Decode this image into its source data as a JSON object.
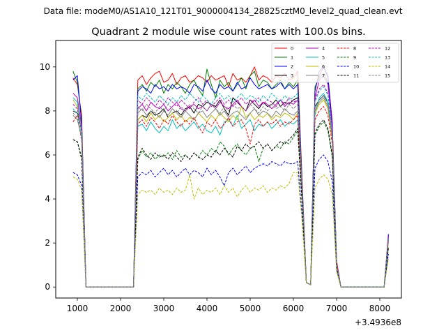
{
  "figure": {
    "suptitle": "Data file: modeM0/AS1A10_121T01_9000004134_28825cztM0_level2_quad_clean.evt"
  },
  "chart_data": {
    "type": "line",
    "title": "Quadrant 2 module wise count rates with 100.0s bins.",
    "xlabel": "",
    "ylabel": "",
    "xlim": [
      500,
      8500
    ],
    "ylim": [
      -0.5,
      11.2
    ],
    "x_ticks": [
      1000,
      2000,
      3000,
      4000,
      5000,
      6000,
      7000,
      8000
    ],
    "x_tick_labels": [
      "1000",
      "2000",
      "3000",
      "4000",
      "5000",
      "6000",
      "7000",
      "8000"
    ],
    "y_ticks": [
      0,
      2,
      4,
      6,
      8,
      10
    ],
    "y_tick_labels": [
      "0",
      "2",
      "4",
      "6",
      "8",
      "10"
    ],
    "x_offset_label": "+3.4936e8",
    "grid": false,
    "legend": {
      "placement": "top-right",
      "columns": 4
    },
    "x": [
      900,
      1000,
      1100,
      1200,
      2300,
      2400,
      2500,
      2600,
      2700,
      2800,
      2900,
      3000,
      3100,
      3200,
      3300,
      3400,
      3500,
      3600,
      3700,
      3800,
      3900,
      4000,
      4100,
      4200,
      4300,
      4400,
      4500,
      4600,
      4700,
      4800,
      4900,
      5000,
      5100,
      5200,
      5300,
      5400,
      5500,
      5600,
      5700,
      5800,
      5900,
      6000,
      6100,
      6200,
      6300,
      6400,
      6500,
      6600,
      6700,
      6800,
      6900,
      7000,
      7100,
      8100,
      8200
    ],
    "series": [
      {
        "name": "0",
        "color": "#ff0000",
        "dash": false,
        "values": [
          9.5,
          9.2,
          7.8,
          0,
          0,
          9.4,
          9.6,
          9.2,
          9.5,
          9.7,
          9.8,
          9.3,
          9.4,
          9.7,
          9.2,
          9.5,
          9.6,
          9.3,
          9.4,
          9.6,
          9.5,
          9.3,
          9.6,
          9.4,
          9.5,
          9.6,
          9.1,
          9.7,
          9.4,
          9.5,
          9.3,
          9.6,
          10.0,
          9.4,
          9.6,
          9.5,
          9.3,
          9.6,
          9.5,
          9.7,
          9.4,
          9.5,
          9.8,
          5.0,
          0.2,
          0.1,
          9.0,
          9.6,
          10.0,
          9.5,
          7.5,
          1.2,
          0,
          0,
          2.4
        ]
      },
      {
        "name": "1",
        "color": "#008000",
        "dash": false,
        "values": [
          9.8,
          9.3,
          7.6,
          0,
          0,
          9.0,
          9.2,
          8.9,
          9.3,
          9.1,
          9.4,
          8.8,
          9.2,
          9.0,
          9.3,
          9.1,
          8.8,
          9.2,
          9.4,
          9.0,
          8.7,
          9.9,
          9.2,
          8.6,
          9.4,
          9.1,
          9.3,
          8.9,
          9.2,
          9.5,
          9.0,
          9.6,
          9.8,
          9.1,
          9.4,
          9.3,
          9.0,
          9.2,
          9.4,
          9.0,
          9.3,
          9.1,
          9.4,
          4.8,
          0.2,
          0.1,
          9.1,
          9.5,
          9.7,
          9.3,
          7.3,
          1.1,
          0,
          0,
          2.3
        ]
      },
      {
        "name": "2",
        "color": "#0000ff",
        "dash": false,
        "values": [
          9.4,
          9.6,
          7.4,
          0,
          0,
          8.9,
          9.1,
          9.0,
          8.8,
          9.2,
          9.0,
          9.1,
          8.9,
          9.2,
          9.0,
          9.1,
          9.0,
          8.8,
          9.2,
          9.1,
          8.9,
          9.4,
          9.0,
          8.8,
          9.2,
          9.0,
          9.1,
          8.9,
          9.3,
          9.0,
          9.1,
          9.5,
          9.2,
          9.0,
          9.1,
          9.2,
          9.0,
          9.1,
          9.3,
          9.0,
          9.2,
          9.0,
          9.2,
          4.7,
          0.2,
          0.1,
          8.9,
          9.8,
          10.0,
          9.6,
          7.4,
          1.1,
          0,
          0,
          2.4
        ]
      },
      {
        "name": "3",
        "color": "#000000",
        "dash": false,
        "values": [
          8.0,
          7.9,
          7.2,
          0,
          0,
          7.6,
          7.8,
          7.7,
          8.0,
          7.8,
          7.9,
          8.1,
          7.7,
          7.9,
          8.0,
          7.8,
          8.1,
          8.2,
          7.9,
          8.3,
          8.2,
          8.4,
          8.3,
          8.2,
          8.5,
          8.1,
          7.8,
          8.6,
          8.4,
          8.2,
          8.0,
          8.5,
          8.3,
          8.1,
          8.4,
          8.2,
          8.3,
          8.5,
          8.2,
          8.4,
          8.3,
          8.5,
          8.6,
          4.4,
          0.2,
          0.1,
          8.2,
          8.5,
          8.7,
          8.4,
          6.8,
          1.0,
          0,
          0,
          2.2
        ]
      },
      {
        "name": "4",
        "color": "#bf00bf",
        "dash": false,
        "values": [
          8.8,
          8.6,
          7.3,
          0,
          0,
          8.1,
          8.3,
          8.0,
          8.4,
          8.2,
          8.1,
          8.3,
          8.0,
          8.2,
          8.4,
          8.1,
          8.0,
          8.2,
          8.3,
          8.1,
          8.2,
          8.0,
          8.3,
          8.1,
          8.4,
          8.2,
          8.1,
          8.3,
          8.5,
          8.2,
          8.0,
          8.3,
          8.5,
          8.2,
          8.4,
          8.3,
          8.1,
          8.3,
          8.5,
          8.2,
          8.4,
          8.3,
          8.5,
          4.6,
          0.2,
          0.1,
          8.6,
          9.4,
          9.6,
          9.2,
          7.2,
          1.1,
          0,
          0,
          2.3
        ]
      },
      {
        "name": "5",
        "color": "#00bfbf",
        "dash": false,
        "values": [
          8.6,
          8.4,
          7.1,
          0,
          0,
          7.3,
          7.4,
          7.1,
          7.5,
          7.2,
          7.0,
          7.3,
          7.1,
          7.6,
          7.2,
          7.4,
          7.1,
          7.3,
          7.5,
          7.2,
          7.4,
          7.1,
          7.0,
          7.3,
          6.9,
          7.5,
          7.6,
          7.3,
          7.8,
          7.2,
          7.4,
          7.6,
          7.1,
          7.4,
          7.3,
          7.5,
          7.2,
          7.4,
          7.6,
          7.3,
          7.5,
          7.4,
          7.6,
          4.2,
          0.2,
          0.1,
          7.8,
          8.6,
          8.8,
          8.4,
          6.9,
          1.0,
          0,
          0,
          2.2
        ]
      },
      {
        "name": "6",
        "color": "#bfbf00",
        "dash": false,
        "values": [
          8.5,
          8.2,
          7.0,
          0,
          0,
          7.6,
          7.8,
          7.5,
          7.9,
          7.6,
          7.8,
          7.5,
          7.7,
          7.9,
          7.6,
          7.8,
          7.5,
          7.7,
          7.6,
          7.9,
          7.7,
          7.5,
          7.8,
          7.6,
          7.9,
          7.7,
          7.5,
          7.8,
          7.6,
          8.2,
          7.7,
          7.9,
          7.6,
          7.8,
          7.7,
          7.9,
          7.6,
          7.8,
          7.7,
          7.9,
          7.8,
          7.6,
          7.9,
          4.3,
          0.2,
          0.1,
          7.9,
          8.3,
          8.5,
          8.1,
          6.7,
          1.0,
          0,
          0,
          2.1
        ]
      },
      {
        "name": "7",
        "color": "#808080",
        "dash": false,
        "values": [
          7.8,
          7.6,
          6.8,
          0,
          0,
          7.9,
          8.1,
          7.8,
          8.0,
          7.9,
          7.7,
          8.0,
          7.8,
          8.1,
          7.9,
          7.7,
          8.0,
          7.8,
          7.6,
          7.9,
          8.0,
          7.7,
          7.9,
          8.1,
          7.8,
          8.0,
          7.7,
          7.9,
          8.0,
          7.8,
          7.6,
          7.9,
          8.1,
          7.8,
          8.0,
          7.9,
          7.7,
          8.0,
          7.8,
          8.1,
          7.9,
          7.8,
          8.0,
          4.4,
          0.2,
          0.1,
          8.0,
          8.4,
          8.6,
          8.2,
          6.8,
          1.0,
          0,
          0,
          2.2
        ]
      },
      {
        "name": "8",
        "color": "#ff0000",
        "dash": true,
        "values": [
          7.5,
          7.8,
          6.6,
          0,
          0,
          7.4,
          7.6,
          7.3,
          7.7,
          7.5,
          7.2,
          7.6,
          7.4,
          7.8,
          7.5,
          7.3,
          7.6,
          7.4,
          7.7,
          7.3,
          7.0,
          7.5,
          7.3,
          7.6,
          7.2,
          7.4,
          7.7,
          7.3,
          7.5,
          7.6,
          7.2,
          6.5,
          7.4,
          7.6,
          7.3,
          7.5,
          7.4,
          7.6,
          7.3,
          7.5,
          7.4,
          7.6,
          7.8,
          4.1,
          0.2,
          0.1,
          7.6,
          8.0,
          8.2,
          7.8,
          6.5,
          1.0,
          0,
          0,
          2.1
        ]
      },
      {
        "name": "9",
        "color": "#008000",
        "dash": true,
        "values": [
          6.7,
          6.6,
          5.9,
          0,
          0,
          5.8,
          6.2,
          5.9,
          6.1,
          5.8,
          6.0,
          5.9,
          6.1,
          5.8,
          6.2,
          5.9,
          6.0,
          5.8,
          6.1,
          5.9,
          6.2,
          6.0,
          6.3,
          6.1,
          6.6,
          6.4,
          6.0,
          6.3,
          6.5,
          6.2,
          6.0,
          6.3,
          6.4,
          5.7,
          6.3,
          6.5,
          6.2,
          6.4,
          6.3,
          6.6,
          6.5,
          6.8,
          7.1,
          3.8,
          0.2,
          0.1,
          6.9,
          7.3,
          7.5,
          7.1,
          5.9,
          0.9,
          0,
          0,
          1.8
        ]
      },
      {
        "name": "10",
        "color": "#0000ff",
        "dash": true,
        "values": [
          5.2,
          5.1,
          4.6,
          0,
          0,
          5.0,
          5.2,
          5.1,
          5.3,
          5.0,
          5.2,
          5.4,
          5.1,
          5.3,
          5.0,
          5.2,
          5.4,
          5.1,
          5.3,
          5.2,
          5.0,
          5.4,
          5.1,
          5.3,
          5.0,
          4.6,
          5.2,
          5.4,
          5.1,
          5.3,
          5.5,
          5.2,
          5.4,
          5.5,
          5.6,
          5.5,
          5.7,
          5.6,
          5.5,
          5.7,
          5.6,
          5.6,
          5.7,
          3.2,
          0.2,
          0.1,
          5.4,
          5.8,
          6.0,
          5.7,
          4.8,
          0.8,
          0,
          0,
          1.5
        ]
      },
      {
        "name": "11",
        "color": "#000000",
        "dash": true,
        "values": [
          6.7,
          6.6,
          5.8,
          0,
          0,
          5.9,
          6.3,
          6.0,
          5.8,
          6.1,
          5.9,
          6.0,
          5.8,
          6.1,
          5.9,
          5.7,
          6.0,
          5.8,
          6.1,
          5.9,
          5.8,
          6.0,
          5.9,
          6.2,
          6.0,
          6.3,
          6.1,
          5.9,
          6.4,
          6.2,
          6.5,
          6.3,
          6.4,
          6.6,
          6.3,
          6.5,
          6.2,
          6.4,
          6.6,
          6.5,
          6.7,
          6.9,
          7.2,
          3.9,
          0.2,
          0.1,
          7.0,
          7.4,
          7.6,
          7.2,
          6.0,
          0.9,
          0,
          0,
          1.8
        ]
      },
      {
        "name": "12",
        "color": "#bf00bf",
        "dash": true,
        "values": [
          8.3,
          8.1,
          7.0,
          0,
          0,
          8.5,
          8.3,
          8.6,
          8.4,
          8.2,
          8.5,
          8.3,
          8.6,
          8.4,
          8.2,
          8.5,
          8.3,
          8.1,
          8.4,
          8.6,
          8.3,
          8.5,
          8.2,
          8.4,
          8.6,
          8.3,
          8.5,
          8.2,
          8.4,
          8.6,
          8.3,
          8.5,
          8.4,
          8.6,
          8.3,
          8.5,
          8.4,
          8.2,
          8.5,
          8.3,
          8.6,
          8.4,
          8.5,
          4.5,
          0.2,
          0.1,
          8.5,
          9.0,
          9.2,
          8.8,
          7.0,
          1.0,
          0,
          0,
          2.2
        ]
      },
      {
        "name": "13",
        "color": "#00bfbf",
        "dash": true,
        "values": [
          8.1,
          7.9,
          6.9,
          0,
          0,
          8.7,
          8.5,
          8.8,
          8.6,
          8.4,
          8.7,
          8.5,
          8.3,
          8.6,
          8.4,
          8.7,
          8.5,
          8.8,
          8.6,
          8.4,
          8.7,
          8.5,
          8.3,
          8.6,
          8.8,
          8.5,
          8.7,
          8.4,
          8.6,
          8.8,
          8.5,
          8.7,
          8.6,
          8.4,
          8.7,
          8.5,
          8.8,
          8.6,
          8.4,
          8.7,
          8.5,
          8.6,
          8.8,
          4.6,
          0.2,
          0.1,
          8.4,
          8.9,
          9.1,
          8.7,
          7.0,
          1.0,
          0,
          0,
          2.2
        ]
      },
      {
        "name": "14",
        "color": "#bfbf00",
        "dash": true,
        "values": [
          5.0,
          4.9,
          4.4,
          0,
          0,
          4.2,
          4.4,
          4.3,
          4.4,
          4.2,
          4.5,
          4.3,
          4.4,
          4.2,
          4.5,
          4.3,
          4.4,
          5.1,
          4.0,
          4.5,
          4.2,
          4.4,
          4.3,
          4.5,
          4.2,
          4.6,
          4.3,
          4.5,
          4.1,
          4.4,
          4.6,
          4.3,
          4.5,
          4.4,
          4.6,
          4.3,
          4.5,
          4.4,
          4.6,
          4.5,
          4.7,
          5.2,
          5.2,
          3.0,
          0.2,
          0.1,
          4.5,
          4.9,
          5.1,
          4.9,
          4.2,
          0.7,
          0,
          0,
          1.3
        ]
      },
      {
        "name": "15",
        "color": "#808080",
        "dash": true,
        "values": [
          7.9,
          7.7,
          6.7,
          0,
          0,
          8.2,
          8.0,
          8.3,
          8.1,
          7.9,
          8.2,
          8.0,
          8.3,
          8.1,
          7.9,
          8.2,
          8.0,
          8.3,
          8.1,
          7.9,
          8.2,
          8.0,
          8.3,
          8.1,
          7.9,
          8.2,
          8.0,
          8.3,
          8.1,
          8.2,
          8.0,
          8.3,
          8.1,
          7.9,
          8.2,
          8.0,
          8.3,
          8.1,
          8.2,
          8.0,
          8.3,
          8.1,
          8.3,
          4.4,
          0.2,
          0.1,
          8.1,
          8.5,
          8.7,
          8.3,
          6.9,
          1.0,
          0,
          0,
          2.2
        ]
      }
    ]
  }
}
